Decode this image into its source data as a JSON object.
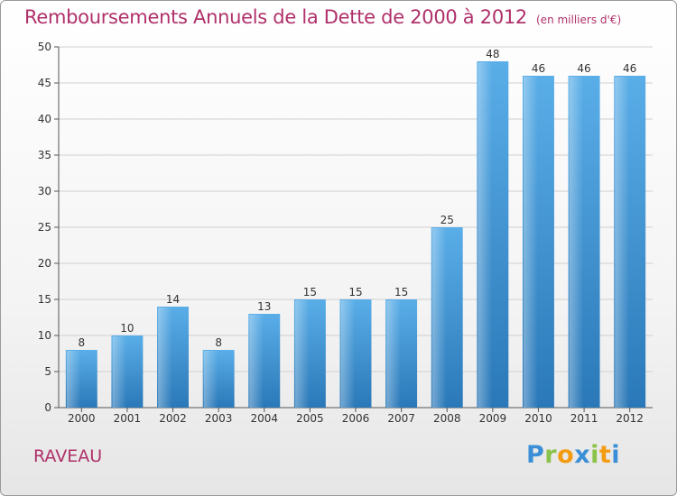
{
  "title": "Remboursements Annuels de la Dette de 2000 à 2012",
  "unit_note": "(en milliers d'€)",
  "commune": "RAVEAU",
  "logo": {
    "text": "Proxiti",
    "letters": [
      {
        "char": "P",
        "color": "#3a8fd6"
      },
      {
        "char": "r",
        "color": "#8bc34a"
      },
      {
        "char": "o",
        "color": "#f39c12"
      },
      {
        "char": "x",
        "color": "#3a8fd6"
      },
      {
        "char": "i",
        "color": "#8bc34a"
      },
      {
        "char": "t",
        "color": "#f39c12"
      },
      {
        "char": "i",
        "color": "#3a8fd6"
      }
    ]
  },
  "colors": {
    "bar_top": "#5aaee8",
    "bar_bottom": "#2a78b8",
    "title": "#b0306a",
    "grid": "#d0d0d0"
  },
  "chart_data": {
    "type": "bar",
    "title": "Remboursements Annuels de la Dette de 2000 à 2012",
    "categories": [
      "2000",
      "2001",
      "2002",
      "2003",
      "2004",
      "2005",
      "2006",
      "2007",
      "2008",
      "2009",
      "2010",
      "2011",
      "2012"
    ],
    "values": [
      8,
      10,
      14,
      8,
      13,
      15,
      15,
      15,
      25,
      48,
      46,
      46,
      46
    ],
    "xlabel": "",
    "ylabel": "",
    "ylim": [
      0,
      50
    ],
    "yticks": [
      0,
      5,
      10,
      15,
      20,
      25,
      30,
      35,
      40,
      45,
      50
    ],
    "grid": true,
    "legend": "none"
  }
}
